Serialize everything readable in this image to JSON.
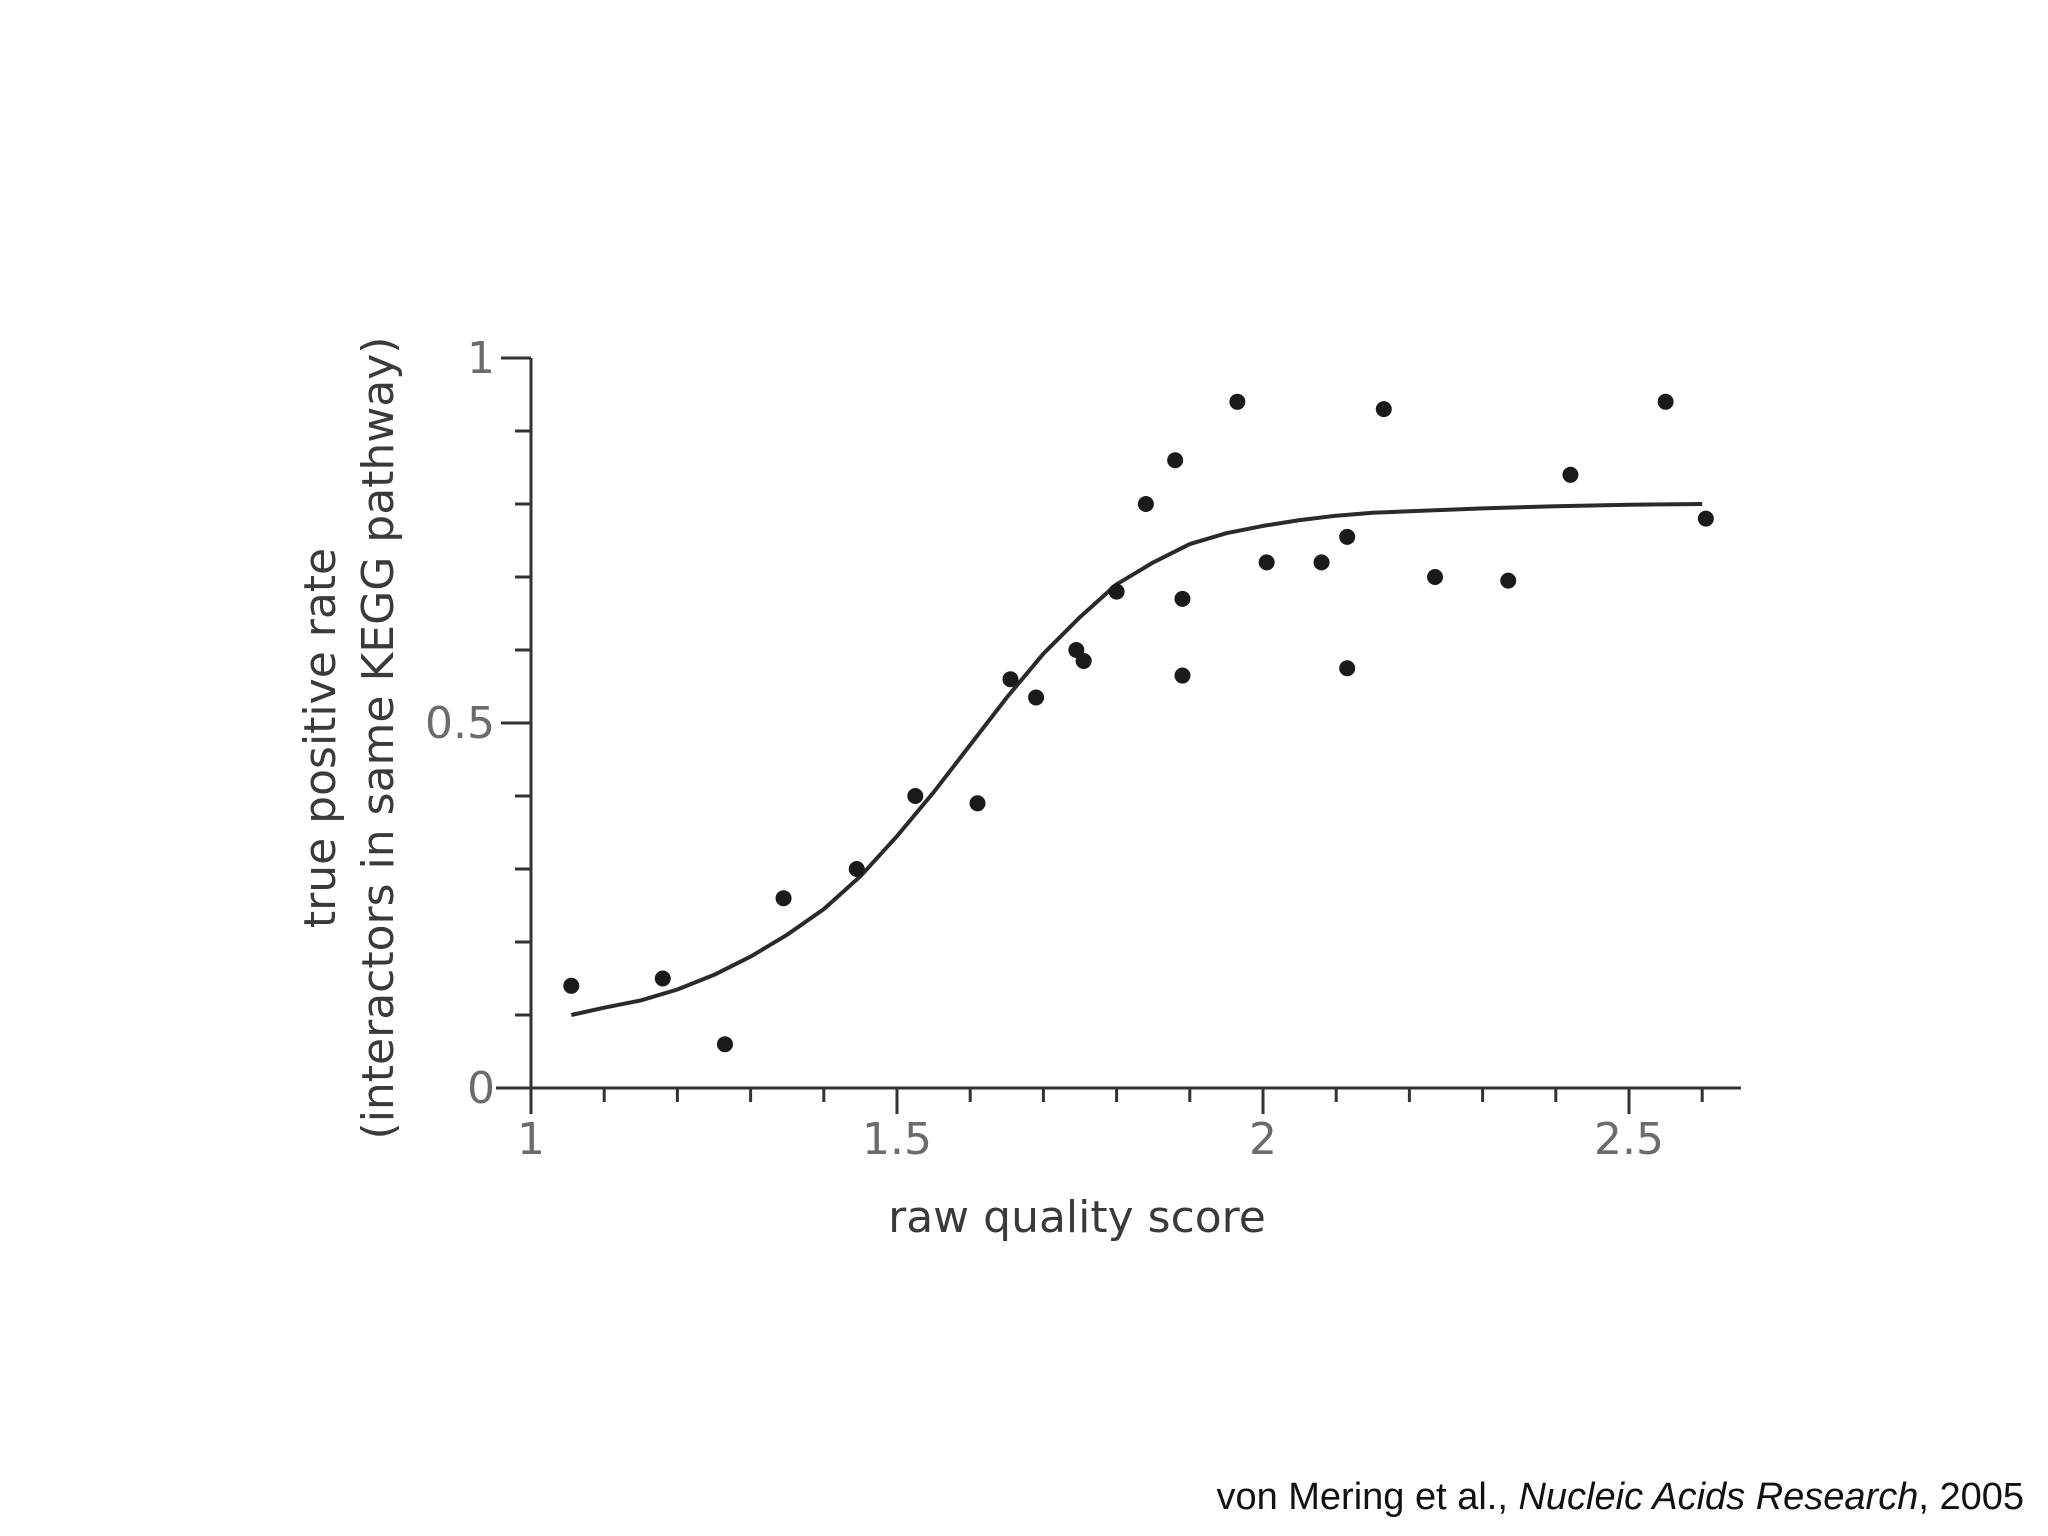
{
  "chart_data": {
    "type": "scatter",
    "title": "",
    "xlabel": "raw quality score",
    "ylabel_line1": "true positive rate",
    "ylabel_line2": "(interactors in same KEGG pathway)",
    "xlim": [
      1,
      2.65
    ],
    "ylim": [
      0,
      1
    ],
    "x_ticks": [
      1,
      1.5,
      2,
      2.5
    ],
    "x_tick_labels": [
      "1",
      "1.5",
      "2",
      "2.5"
    ],
    "x_minor_step": 0.1,
    "y_ticks": [
      0,
      0.5,
      1
    ],
    "y_tick_labels": [
      "0",
      "0.5",
      "1"
    ],
    "y_minor_step": 0.1,
    "grid": false,
    "series": [
      {
        "kind": "points",
        "x": [
          1.055,
          1.18,
          1.265,
          1.345,
          1.445,
          1.525,
          1.61,
          1.655,
          1.69,
          1.745,
          1.755,
          1.8,
          1.84,
          1.88,
          1.89,
          1.89,
          1.965,
          2.005,
          2.08,
          2.115,
          2.115,
          2.165,
          2.235,
          2.335,
          2.42,
          2.55,
          2.605
        ],
        "y": [
          0.14,
          0.15,
          0.06,
          0.26,
          0.3,
          0.4,
          0.39,
          0.56,
          0.535,
          0.6,
          0.585,
          0.68,
          0.8,
          0.86,
          0.67,
          0.565,
          0.94,
          0.72,
          0.72,
          0.755,
          0.575,
          0.93,
          0.7,
          0.695,
          0.84,
          0.94,
          0.78
        ]
      },
      {
        "kind": "fit",
        "x": [
          1.055,
          1.1,
          1.15,
          1.2,
          1.25,
          1.3,
          1.35,
          1.4,
          1.45,
          1.5,
          1.55,
          1.6,
          1.65,
          1.7,
          1.75,
          1.8,
          1.85,
          1.9,
          1.95,
          2.0,
          2.05,
          2.1,
          2.15,
          2.2,
          2.3,
          2.4,
          2.5,
          2.6
        ],
        "y": [
          0.1,
          0.11,
          0.12,
          0.135,
          0.155,
          0.18,
          0.21,
          0.245,
          0.29,
          0.345,
          0.405,
          0.47,
          0.535,
          0.595,
          0.645,
          0.69,
          0.72,
          0.745,
          0.76,
          0.77,
          0.778,
          0.784,
          0.788,
          0.79,
          0.794,
          0.797,
          0.799,
          0.8
        ]
      }
    ]
  },
  "caption": {
    "authors": "von Mering et al., ",
    "journal": "Nucleic Acids Research",
    "year": ", 2005"
  },
  "colors": {
    "axis": "#333333",
    "marker": "#1a1a1a",
    "fit_line": "#2a2a2a"
  }
}
